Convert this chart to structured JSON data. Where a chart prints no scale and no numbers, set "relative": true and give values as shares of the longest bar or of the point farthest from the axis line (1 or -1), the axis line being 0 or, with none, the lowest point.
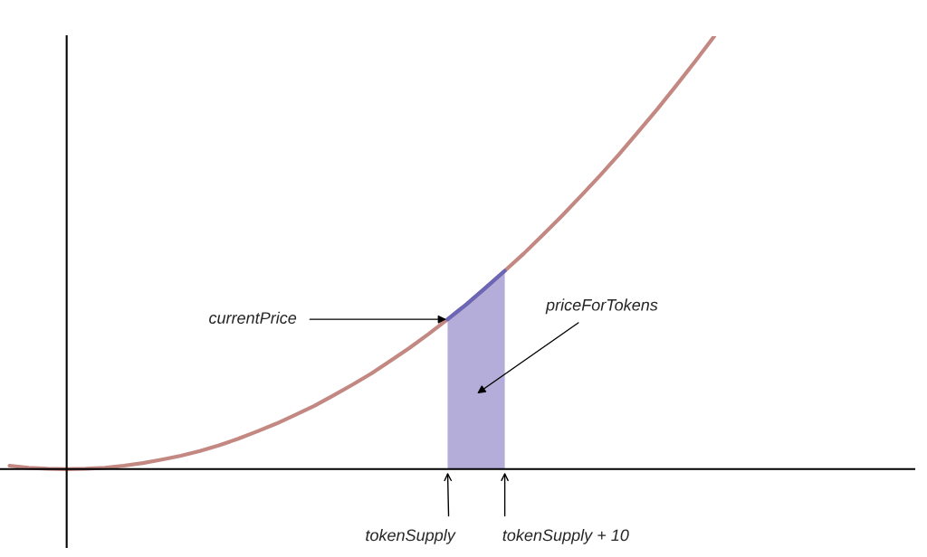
{
  "chart_data": {
    "type": "line",
    "relative": true,
    "categories": [
      null,
      null,
      null,
      null,
      null,
      null,
      null,
      null,
      null,
      null,
      null,
      null,
      null,
      null,
      null,
      null,
      null,
      null,
      null,
      null,
      null,
      null,
      null,
      null,
      null,
      null,
      null,
      null,
      null,
      null,
      null,
      null,
      null,
      null,
      null,
      null,
      null,
      null
    ],
    "series": [
      {
        "type": "line",
        "color": "#c48883",
        "values": [
          0.008,
          0.003,
          0.001,
          0,
          0.001,
          0.003,
          0.008,
          0.014,
          0.022,
          0.031,
          0.042,
          0.055,
          0.07,
          0.087,
          0.105,
          0.125,
          0.146,
          0.17,
          0.195,
          0.221,
          0.25,
          0.28,
          0.312,
          0.346,
          0.381,
          0.419,
          0.458,
          0.498,
          0.541,
          0.585,
          0.631,
          0.678,
          0.727,
          0.779,
          0.831,
          0.886,
          0.942,
          1
        ]
      },
      {
        "type": "area",
        "color": "#b4acd9",
        "values": [
          null,
          null,
          null,
          null,
          null,
          null,
          null,
          null,
          null,
          null,
          null,
          null,
          null,
          null,
          null,
          null,
          null,
          null,
          null,
          null,
          null,
          null,
          null,
          0.346,
          0.381,
          0.419,
          0.458,
          null,
          null,
          null,
          null,
          null,
          null,
          null,
          null,
          null,
          null,
          null
        ]
      }
    ],
    "annotations": [
      "currentPrice",
      "priceForTokens",
      "tokenSupply",
      "tokenSupply + 10"
    ]
  }
}
